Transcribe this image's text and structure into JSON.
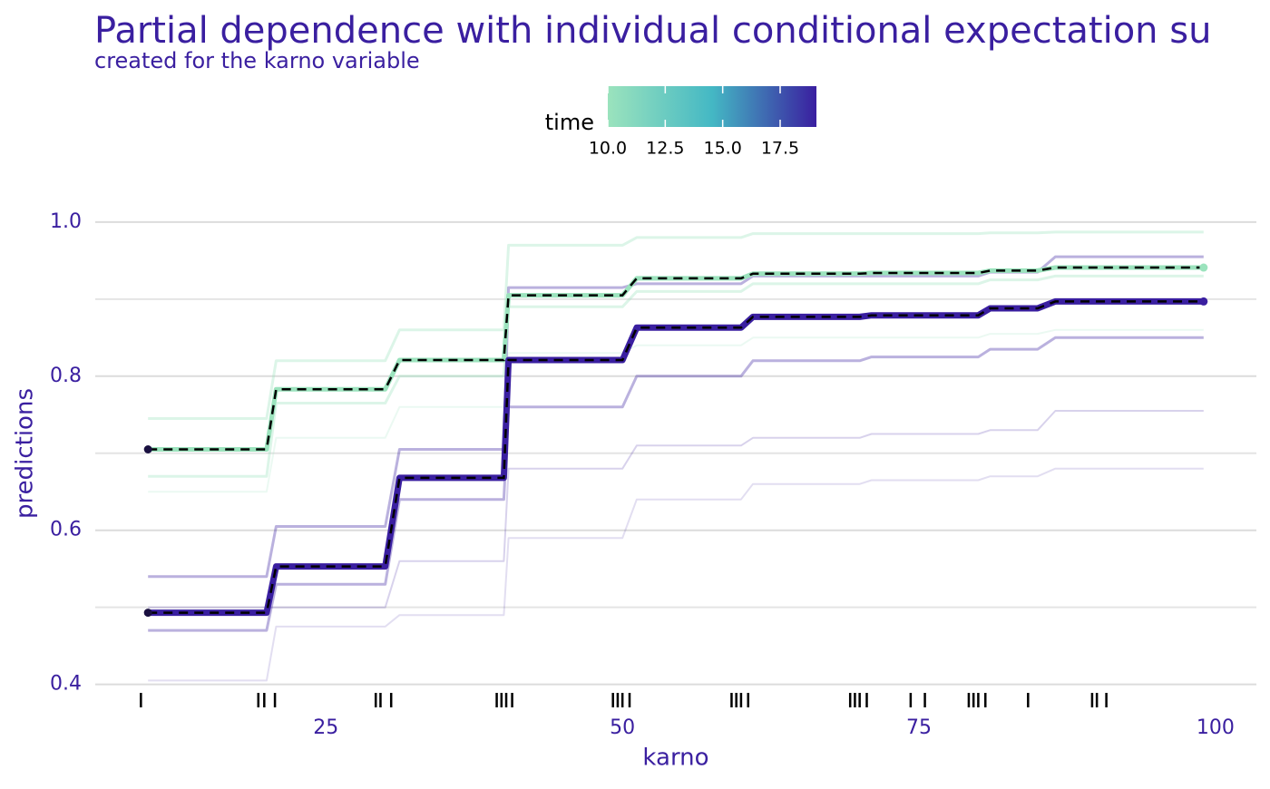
{
  "chart_data": {
    "type": "line",
    "title": "Partial dependence with individual conditional expectation su",
    "subtitle": "created for the karno variable",
    "x_label": "karno",
    "y_label": "predictions",
    "xlim": [
      5.55,
      103.45
    ],
    "ylim": [
      0.376,
      1.014
    ],
    "xticks": [
      25,
      50,
      75,
      100
    ],
    "yticks": [
      0.4,
      0.6,
      0.8,
      {
        "value": 1.0,
        "label": "1.0"
      }
    ],
    "minor_yticks": [
      0.5,
      0.7,
      0.9
    ],
    "grid": true,
    "colorbar": {
      "title": "time",
      "lim": [
        10,
        19
      ],
      "ticks": [
        {
          "value": 10,
          "label": "10.0"
        },
        {
          "value": 12.5,
          "label": "12.5"
        },
        {
          "value": 15,
          "label": "15.0"
        },
        {
          "value": 17.5,
          "label": "17.5"
        }
      ],
      "colors": [
        "#9be3bd",
        "#44b8c4",
        "#3a1fa0"
      ]
    },
    "x": [
      10,
      20,
      20.8,
      30,
      31.2,
      40,
      40.4,
      50,
      51.2,
      60,
      61,
      70,
      71,
      80,
      81,
      85,
      86.5,
      99
    ],
    "series": [
      {
        "color": "#9be3bd",
        "opacity": 0.35,
        "width": 3,
        "values": [
          0.745,
          0.745,
          0.82,
          0.82,
          0.86,
          0.86,
          0.97,
          0.97,
          0.98,
          0.98,
          0.985,
          0.985,
          0.985,
          0.985,
          0.986,
          0.986,
          0.987,
          0.987
        ]
      },
      {
        "color": "#9be3bd",
        "opacity": 0.35,
        "width": 3,
        "values": [
          0.67,
          0.67,
          0.765,
          0.765,
          0.8,
          0.8,
          0.89,
          0.89,
          0.91,
          0.91,
          0.92,
          0.92,
          0.92,
          0.92,
          0.925,
          0.925,
          0.93,
          0.93
        ]
      },
      {
        "color": "#9be3bd",
        "opacity": 0.2,
        "width": 2,
        "values": [
          0.65,
          0.65,
          0.72,
          0.72,
          0.76,
          0.76,
          0.83,
          0.83,
          0.84,
          0.84,
          0.85,
          0.85,
          0.85,
          0.85,
          0.855,
          0.855,
          0.86,
          0.86
        ]
      },
      {
        "color": "#3a1fa0",
        "opacity": 0.35,
        "width": 3,
        "values": [
          0.54,
          0.54,
          0.605,
          0.605,
          0.705,
          0.705,
          0.915,
          0.915,
          0.92,
          0.92,
          0.93,
          0.93,
          0.93,
          0.93,
          0.935,
          0.935,
          0.955,
          0.955
        ]
      },
      {
        "color": "#3a1fa0",
        "opacity": 0.35,
        "width": 3,
        "values": [
          0.47,
          0.47,
          0.53,
          0.53,
          0.64,
          0.64,
          0.76,
          0.76,
          0.8,
          0.8,
          0.82,
          0.82,
          0.825,
          0.825,
          0.835,
          0.835,
          0.85,
          0.85
        ]
      },
      {
        "color": "#3a1fa0",
        "opacity": 0.15,
        "width": 2,
        "values": [
          0.405,
          0.405,
          0.475,
          0.475,
          0.49,
          0.49,
          0.59,
          0.59,
          0.64,
          0.64,
          0.66,
          0.66,
          0.665,
          0.665,
          0.67,
          0.67,
          0.68,
          0.68
        ]
      },
      {
        "color": "#3a1fa0",
        "opacity": 0.2,
        "width": 2,
        "values": [
          0.5,
          0.5,
          0.5,
          0.5,
          0.56,
          0.56,
          0.68,
          0.68,
          0.71,
          0.71,
          0.72,
          0.72,
          0.725,
          0.725,
          0.73,
          0.73,
          0.755,
          0.755
        ]
      },
      {
        "color": "#9be3bd",
        "opacity": 1,
        "width": 5,
        "aggregate": true,
        "values": [
          0.705,
          0.705,
          0.783,
          0.783,
          0.821,
          0.821,
          0.905,
          0.905,
          0.927,
          0.927,
          0.933,
          0.933,
          0.934,
          0.934,
          0.937,
          0.937,
          0.941,
          0.941
        ]
      },
      {
        "color": "#3a1fa0",
        "opacity": 1,
        "width": 7,
        "aggregate": true,
        "values": [
          0.493,
          0.493,
          0.553,
          0.553,
          0.668,
          0.668,
          0.821,
          0.821,
          0.863,
          0.863,
          0.877,
          0.877,
          0.879,
          0.879,
          0.888,
          0.888,
          0.897,
          0.897
        ]
      }
    ],
    "rug": [
      9.4,
      19.3,
      19.8,
      20.7,
      29.2,
      29.6,
      30.5,
      39.4,
      39.8,
      40.2,
      40.7,
      49.2,
      49.6,
      50,
      50.6,
      59.2,
      59.6,
      60,
      60.6,
      69.2,
      69.6,
      70,
      70.6,
      74.3,
      75.5,
      79.2,
      79.6,
      80,
      80.6,
      84.2,
      89.6,
      90,
      90.8
    ]
  }
}
